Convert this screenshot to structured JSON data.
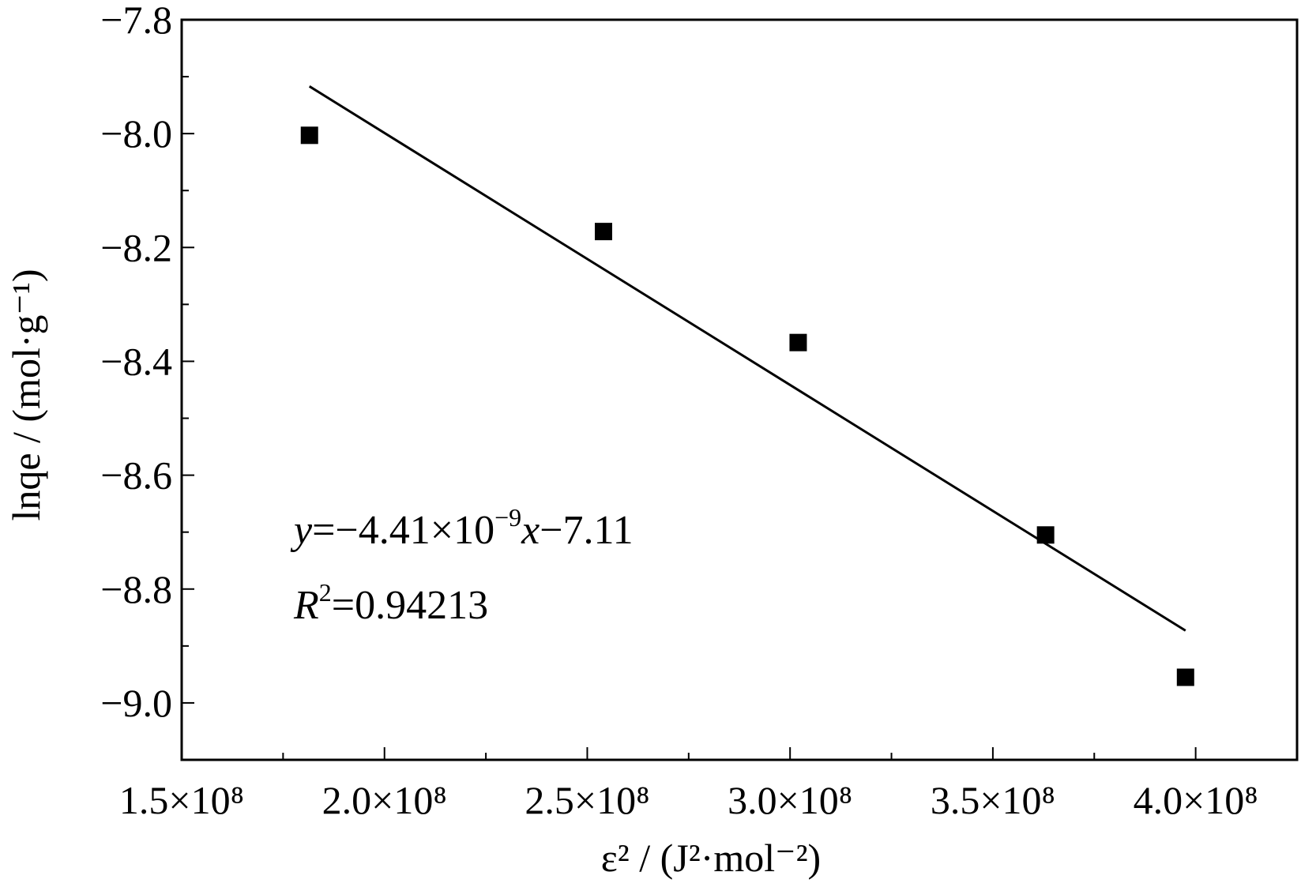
{
  "chart_data": {
    "type": "scatter",
    "xlabel": "ε² / (J²·mol⁻²)",
    "ylabel": "lnqe / (mol·g⁻¹)",
    "xlim": [
      150000000,
      425000000
    ],
    "ylim": [
      -9.1,
      -7.8
    ],
    "x_ticks": [
      150000000,
      200000000,
      250000000,
      300000000,
      350000000,
      400000000
    ],
    "x_tick_labels": [
      "1.5×10⁸",
      "2.0×10⁸",
      "2.5×10⁸",
      "3.0×10⁸",
      "3.5×10⁸",
      "4.0×10⁸"
    ],
    "y_ticks": [
      -7.8,
      -8.0,
      -8.2,
      -8.4,
      -8.6,
      -8.8,
      -9.0
    ],
    "y_tick_labels": [
      "−7.8",
      "−8.0",
      "−8.2",
      "−8.4",
      "−8.6",
      "−8.8",
      "−9.0"
    ],
    "series": [
      {
        "marker": "square",
        "x": [
          181500000,
          254000000,
          302000000,
          363000000,
          397500000
        ],
        "y": [
          -8.003,
          -8.172,
          -8.367,
          -8.705,
          -8.955
        ]
      }
    ],
    "fit_line": {
      "x": [
        181500000,
        397500000
      ],
      "y": [
        -7.917,
        -8.873
      ]
    },
    "annotations": {
      "equation": {
        "y": "y",
        "mid1": "=−4.41×10",
        "sup": "−9",
        "x": "x",
        "end": "−7.11"
      },
      "r2": {
        "r": "R",
        "sup": "2",
        "rest": "=0.94213"
      }
    },
    "grid": false,
    "colors": {
      "marker": "#000000",
      "line": "#000000"
    }
  }
}
